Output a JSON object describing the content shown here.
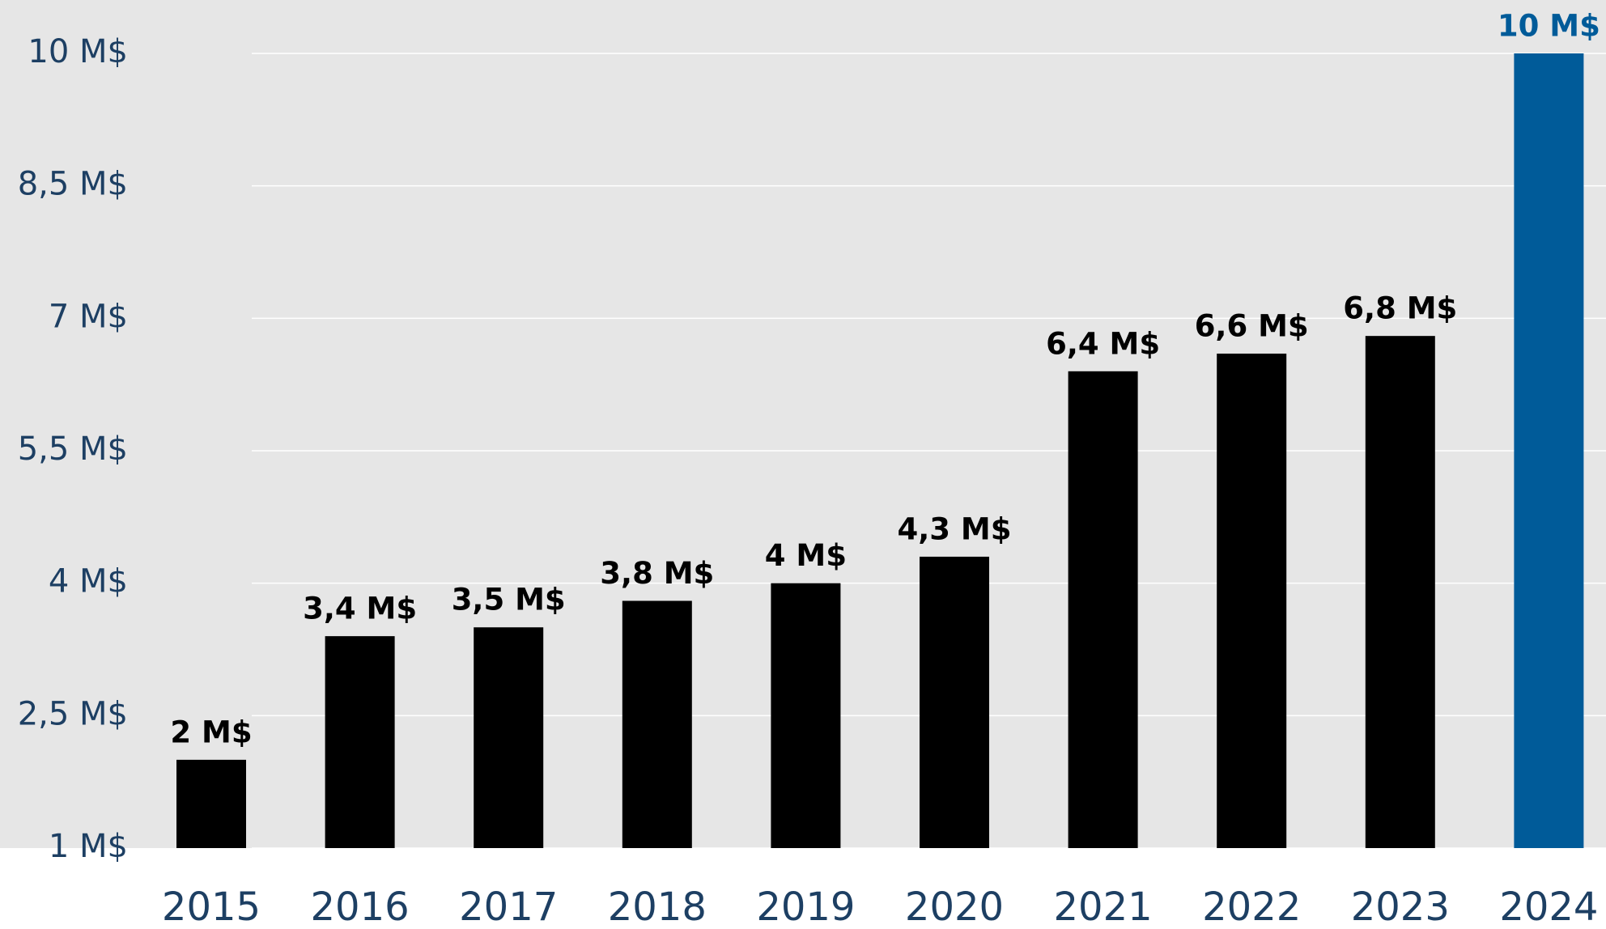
{
  "chart_data": {
    "type": "bar",
    "categories": [
      "2015",
      "2016",
      "2017",
      "2018",
      "2019",
      "2020",
      "2021",
      "2022",
      "2023",
      "2024"
    ],
    "values": [
      2,
      3.4,
      3.5,
      3.8,
      4,
      4.3,
      6.4,
      6.6,
      6.8,
      10
    ],
    "value_labels": [
      "2 M$",
      "3,4 M$",
      "3,5 M$",
      "3,8 M$",
      "4 M$",
      "4,3 M$",
      "6,4 M$",
      "6,6 M$",
      "6,8 M$",
      "10 M$"
    ],
    "colors": [
      "#000000",
      "#000000",
      "#000000",
      "#000000",
      "#000000",
      "#000000",
      "#000000",
      "#000000",
      "#000000",
      "#005b99"
    ],
    "ylim": [
      1,
      10
    ],
    "yticks": [
      {
        "value": 1,
        "label": "1 M$"
      },
      {
        "value": 2.5,
        "label": "2,5 M$"
      },
      {
        "value": 4,
        "label": "4 M$"
      },
      {
        "value": 5.5,
        "label": "5,5 M$"
      },
      {
        "value": 7,
        "label": "7 M$"
      },
      {
        "value": 8.5,
        "label": "8,5 M$"
      },
      {
        "value": 10,
        "label": "10 M$"
      }
    ],
    "grid": true
  }
}
